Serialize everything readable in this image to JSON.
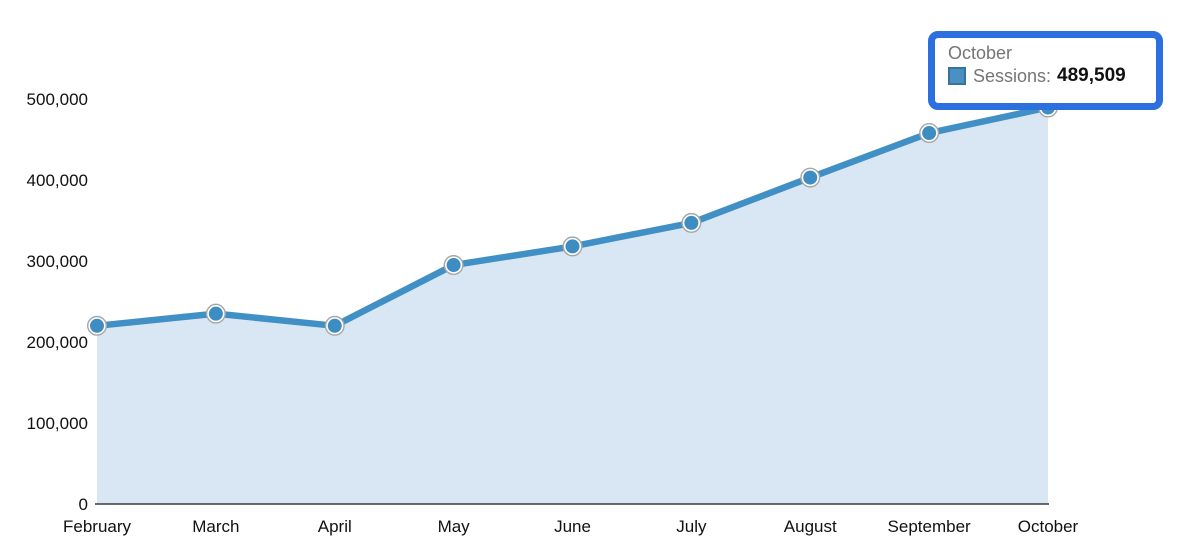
{
  "chart_data": {
    "type": "area",
    "title": "",
    "categories": [
      "February",
      "March",
      "April",
      "May",
      "June",
      "July",
      "August",
      "September",
      "October"
    ],
    "series": [
      {
        "name": "Sessions",
        "values": [
          220000,
          235000,
          220000,
          295000,
          318000,
          347000,
          403000,
          458000,
          489509
        ]
      }
    ],
    "y_tick_labels": [
      "0",
      "100,000",
      "200,000",
      "300,000",
      "400,000",
      "500,000"
    ],
    "y_tick_values": [
      0,
      100000,
      200000,
      300000,
      400000,
      500000
    ],
    "ylim": [
      0,
      500000
    ],
    "xlabel": "",
    "ylabel": "",
    "grid": false,
    "legend_position": "none",
    "markers": true,
    "highlighted_point": "October"
  },
  "tooltip": {
    "title": "October",
    "series_label": "Sessions:",
    "value": "489,509"
  },
  "colors": {
    "line": "#4090c5",
    "marker": "#3d8cc2",
    "marker_ring": "#a6a6a6",
    "area_fill": "#d9e7f4",
    "axis_line": "#3c3c3c",
    "tick_text": "#111111",
    "tooltip_border": "#2c6fdf",
    "tooltip_title": "#757575",
    "tooltip_value": "#111111",
    "swatch_fill": "#4b90c4",
    "swatch_border": "#36749f"
  }
}
